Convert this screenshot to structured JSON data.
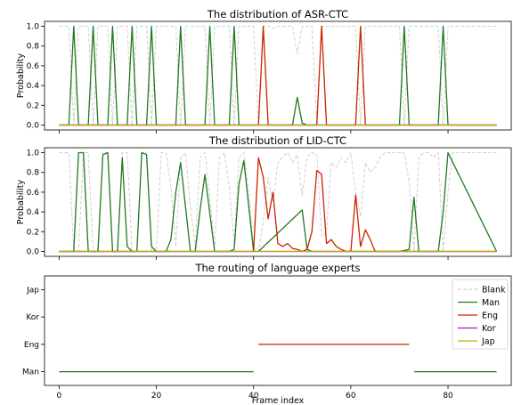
{
  "chart_data": [
    {
      "type": "line",
      "title": "The distribution of ASR-CTC",
      "xlabel": "",
      "ylabel": "Probability",
      "xlim": [
        -3,
        93
      ],
      "ylim": [
        -0.05,
        1.05
      ],
      "yticks": [
        "0.0",
        "0.2",
        "0.4",
        "0.6",
        "0.8",
        "1.0"
      ],
      "series": [
        {
          "key": "blank",
          "color": "#d0d0d0",
          "dash": true,
          "x": [
            0,
            2,
            3,
            4,
            6,
            7,
            8,
            10,
            11,
            12,
            14,
            15,
            16,
            18,
            19,
            20,
            24,
            25,
            26,
            30,
            31,
            32,
            35,
            36,
            37,
            40,
            41,
            42,
            43,
            44,
            45,
            48,
            49,
            50,
            51,
            52,
            53,
            54,
            55,
            56,
            61,
            62,
            63,
            64,
            66,
            70,
            71,
            72,
            78,
            79,
            80,
            90
          ],
          "y": [
            1.0,
            1.0,
            0.0,
            1.0,
            1.0,
            0.0,
            1.0,
            1.0,
            0.0,
            1.0,
            1.0,
            0.0,
            1.0,
            1.0,
            0.0,
            1.0,
            1.0,
            0.0,
            1.0,
            1.0,
            0.0,
            1.0,
            1.0,
            0.0,
            1.0,
            1.0,
            0.0,
            1.0,
            1.0,
            0.98,
            1.0,
            1.0,
            0.72,
            1.0,
            1.0,
            1.0,
            0.0,
            1.0,
            1.0,
            1.0,
            1.0,
            0.0,
            1.0,
            1.0,
            1.0,
            1.0,
            0.0,
            1.0,
            1.0,
            0.0,
            1.0,
            1.0
          ]
        },
        {
          "key": "man",
          "color": "#1f7a1f",
          "x": [
            0,
            2,
            3,
            4,
            6,
            7,
            8,
            10,
            11,
            12,
            14,
            15,
            16,
            18,
            19,
            20,
            24,
            25,
            26,
            30,
            31,
            32,
            35,
            36,
            37,
            48,
            49,
            50,
            51,
            52,
            70,
            71,
            72,
            78,
            79,
            80,
            90
          ],
          "y": [
            0.0,
            0.0,
            1.0,
            0.0,
            0.0,
            1.0,
            0.0,
            0.0,
            1.0,
            0.0,
            0.0,
            1.0,
            0.0,
            0.0,
            1.0,
            0.0,
            0.0,
            1.0,
            0.0,
            0.0,
            1.0,
            0.0,
            0.0,
            1.0,
            0.0,
            0.0,
            0.28,
            0.02,
            0.0,
            0.0,
            0.0,
            1.0,
            0.0,
            0.0,
            1.0,
            0.0,
            0.0
          ]
        },
        {
          "key": "eng",
          "color": "#cc2200",
          "x": [
            0,
            41,
            42,
            43,
            52,
            53,
            54,
            55,
            61,
            62,
            63,
            90
          ],
          "y": [
            0.0,
            0.0,
            1.0,
            0.0,
            0.0,
            0.0,
            1.0,
            0.0,
            0.0,
            1.0,
            0.0,
            0.0
          ]
        },
        {
          "key": "kor",
          "color": "#a020c0",
          "x": [
            0,
            90
          ],
          "y": [
            0.0,
            0.0
          ]
        },
        {
          "key": "jap",
          "color": "#c0b000",
          "x": [
            0,
            90
          ],
          "y": [
            0.0,
            0.0
          ]
        }
      ]
    },
    {
      "type": "line",
      "title": "The distribution of LID-CTC",
      "xlabel": "",
      "ylabel": "Probability",
      "xlim": [
        -3,
        93
      ],
      "ylim": [
        -0.05,
        1.05
      ],
      "yticks": [
        "0.0",
        "0.2",
        "0.4",
        "0.6",
        "0.8",
        "1.0"
      ],
      "series": [
        {
          "key": "blank",
          "color": "#d0d0d0",
          "dash": true,
          "x": [
            0,
            2,
            3,
            4,
            5,
            6,
            7,
            8,
            9,
            10,
            11,
            12,
            13,
            14,
            15,
            16,
            17,
            18,
            19,
            20,
            21,
            22,
            23,
            24,
            25,
            26,
            27,
            28,
            29,
            30,
            31,
            32,
            33,
            34,
            35,
            36,
            37,
            38,
            39,
            40,
            41,
            42,
            43,
            44,
            45,
            46,
            47,
            48,
            49,
            50,
            51,
            52,
            53,
            54,
            55,
            56,
            57,
            58,
            59,
            60,
            61,
            62,
            63,
            64,
            65,
            66,
            67,
            68,
            69,
            70,
            71,
            72,
            73,
            74,
            75,
            76,
            77,
            78,
            79,
            80,
            81,
            82,
            90
          ],
          "y": [
            1.0,
            1.0,
            0.0,
            0.0,
            1.0,
            1.0,
            0.0,
            0.0,
            1.0,
            1.0,
            0.0,
            0.0,
            1.0,
            1.0,
            0.0,
            0.0,
            1.0,
            1.0,
            0.0,
            0.0,
            1.0,
            1.0,
            0.65,
            0.05,
            0.95,
            1.0,
            0.45,
            0.05,
            0.95,
            1.0,
            0.55,
            0.03,
            0.95,
            1.0,
            0.65,
            0.08,
            0.95,
            1.0,
            0.6,
            0.05,
            0.0,
            0.3,
            0.75,
            0.5,
            0.9,
            0.96,
            1.0,
            0.9,
            0.98,
            0.56,
            0.96,
            1.0,
            0.98,
            0.15,
            0.2,
            0.9,
            0.85,
            0.95,
            0.9,
            1.0,
            0.6,
            0.35,
            0.9,
            0.8,
            0.85,
            0.95,
            1.0,
            1.0,
            1.0,
            1.0,
            1.0,
            0.7,
            0.0,
            0.95,
            1.0,
            1.0,
            0.95,
            1.0,
            0.0,
            0.6,
            1.0,
            1.0,
            1.0
          ]
        },
        {
          "key": "man",
          "color": "#1f7a1f",
          "x": [
            0,
            3,
            4,
            5,
            6,
            8,
            9,
            10,
            11,
            12,
            13,
            14,
            15,
            16,
            17,
            18,
            19,
            20,
            22,
            23,
            24,
            25,
            27,
            28,
            29,
            30,
            32,
            33,
            35,
            36,
            37,
            38,
            40,
            41,
            50,
            51,
            52,
            70,
            72,
            73,
            74,
            78,
            79,
            80,
            90
          ],
          "y": [
            0.0,
            0.0,
            1.0,
            1.0,
            0.0,
            0.0,
            0.98,
            1.0,
            0.0,
            0.0,
            0.95,
            0.05,
            0.0,
            0.0,
            1.0,
            0.98,
            0.05,
            0.0,
            0.0,
            0.12,
            0.6,
            0.9,
            0.0,
            0.0,
            0.42,
            0.78,
            0.0,
            0.0,
            0.0,
            0.02,
            0.68,
            0.92,
            0.0,
            0.0,
            0.42,
            0.02,
            0.0,
            0.0,
            0.02,
            0.55,
            0.0,
            0.0,
            0.4,
            1.0,
            0.0
          ]
        },
        {
          "key": "eng",
          "color": "#cc2200",
          "x": [
            0,
            40,
            41,
            42,
            43,
            44,
            45,
            46,
            47,
            48,
            49,
            50,
            51,
            52,
            53,
            54,
            55,
            56,
            57,
            58,
            59,
            60,
            61,
            62,
            63,
            64,
            65,
            66,
            67,
            90
          ],
          "y": [
            0.0,
            0.0,
            0.95,
            0.75,
            0.33,
            0.6,
            0.08,
            0.05,
            0.08,
            0.03,
            0.02,
            0.0,
            0.02,
            0.2,
            0.82,
            0.78,
            0.08,
            0.12,
            0.05,
            0.02,
            0.0,
            0.0,
            0.57,
            0.05,
            0.22,
            0.12,
            0.0,
            0.0,
            0.0,
            0.0
          ]
        },
        {
          "key": "kor",
          "color": "#a020c0",
          "x": [
            0,
            90
          ],
          "y": [
            0.0,
            0.0
          ]
        },
        {
          "key": "jap",
          "color": "#c0b000",
          "x": [
            0,
            90
          ],
          "y": [
            0.0,
            0.0
          ]
        }
      ]
    },
    {
      "type": "line",
      "title": "The routing of language experts",
      "xlabel": "Frame index",
      "ylabel": "",
      "xlim": [
        -3,
        93
      ],
      "ylim": [
        0.5,
        4.5
      ],
      "xticks": [
        0,
        20,
        40,
        60,
        80
      ],
      "ytick_labels": [
        "Man",
        "Eng",
        "Kor",
        "Jap"
      ],
      "legend_position": "upper right",
      "legend": [
        {
          "label": "Blank",
          "color": "#d0d0d0",
          "dash": true
        },
        {
          "label": "Man",
          "color": "#1f7a1f",
          "dash": false
        },
        {
          "label": "Eng",
          "color": "#cc2200",
          "dash": false
        },
        {
          "label": "Kor",
          "color": "#a020c0",
          "dash": false
        },
        {
          "label": "Jap",
          "color": "#c0b000",
          "dash": false
        }
      ],
      "segments": [
        {
          "key": "man",
          "color": "#1f7a1f",
          "x": [
            0,
            40
          ],
          "y": 1
        },
        {
          "key": "eng",
          "color": "#cc2200",
          "x": [
            41,
            72
          ],
          "y": 2
        },
        {
          "key": "man",
          "color": "#1f7a1f",
          "x": [
            73,
            90
          ],
          "y": 1
        }
      ]
    }
  ]
}
